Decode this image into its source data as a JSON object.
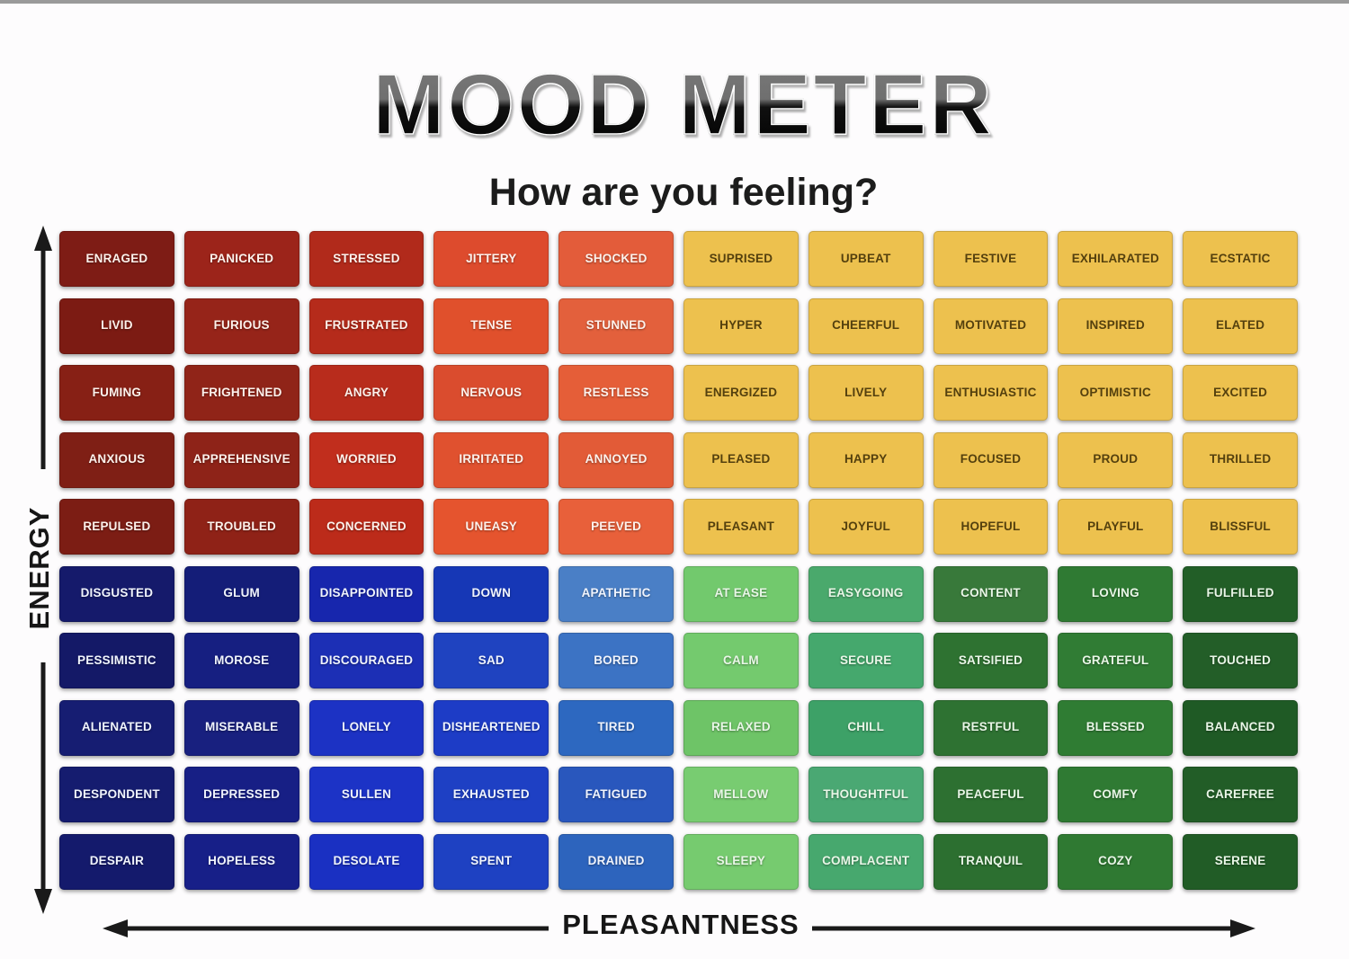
{
  "page": {
    "title": "MOOD METER",
    "subtitle": "How are you feeling?"
  },
  "axes": {
    "y_label": "ENERGY",
    "x_label": "PLEASANTNESS"
  },
  "palette": {
    "background": "#fdfcfd",
    "top_line": "#9a9a9a",
    "axis_arrow": "#1a1a1a",
    "text_colors": {
      "red": "#fdf2ec",
      "yellow": "#54400e",
      "blue": "#f0f4fd",
      "green": "#e9f6e7"
    }
  },
  "chart_data": {
    "type": "heatmap",
    "title": "MOOD METER",
    "subtitle": "How are you feeling?",
    "xlabel": "PLEASANTNESS",
    "ylabel": "ENERGY",
    "grid_size": "10x10",
    "legend_position": "none",
    "quadrant_colors": {
      "top_left": "red",
      "top_right": "yellow",
      "bottom_left": "blue",
      "bottom_right": "green"
    },
    "grid": [
      [
        {
          "label": "ENRAGED",
          "color": "#7e1c15"
        },
        {
          "label": "PANICKED",
          "color": "#9c241a"
        },
        {
          "label": "STRESSED",
          "color": "#b12a1b"
        },
        {
          "label": "JITTERY",
          "color": "#dd4b2d"
        },
        {
          "label": "SHOCKED",
          "color": "#e35c3a"
        },
        {
          "label": "SUPRISED",
          "color": "#edc14e"
        },
        {
          "label": "UPBEAT",
          "color": "#edc14e"
        },
        {
          "label": "FESTIVE",
          "color": "#edc14e"
        },
        {
          "label": "EXHILARATED",
          "color": "#edc14e"
        },
        {
          "label": "ECSTATIC",
          "color": "#edc14e"
        }
      ],
      [
        {
          "label": "LIVID",
          "color": "#7c1b13"
        },
        {
          "label": "FURIOUS",
          "color": "#962419"
        },
        {
          "label": "FRUSTRATED",
          "color": "#b52b1b"
        },
        {
          "label": "TENSE",
          "color": "#e0502c"
        },
        {
          "label": "STUNNED",
          "color": "#e3603c"
        },
        {
          "label": "HYPER",
          "color": "#edc14e"
        },
        {
          "label": "CHEERFUL",
          "color": "#edc14e"
        },
        {
          "label": "MOTIVATED",
          "color": "#edc14e"
        },
        {
          "label": "INSPIRED",
          "color": "#edc14e"
        },
        {
          "label": "ELATED",
          "color": "#edc14e"
        }
      ],
      [
        {
          "label": "FUMING",
          "color": "#872015"
        },
        {
          "label": "FRIGHTENED",
          "color": "#902418"
        },
        {
          "label": "ANGRY",
          "color": "#b82c1c"
        },
        {
          "label": "NERVOUS",
          "color": "#da4c2e"
        },
        {
          "label": "RESTLESS",
          "color": "#e55e38"
        },
        {
          "label": "ENERGIZED",
          "color": "#edc14e"
        },
        {
          "label": "LIVELY",
          "color": "#edc14e"
        },
        {
          "label": "ENTHUSIASTIC",
          "color": "#edc14e"
        },
        {
          "label": "OPTIMISTIC",
          "color": "#edc14e"
        },
        {
          "label": "EXCITED",
          "color": "#edc14e"
        }
      ],
      [
        {
          "label": "ANXIOUS",
          "color": "#7f1f15"
        },
        {
          "label": "APPREHENSIVE",
          "color": "#8e2318"
        },
        {
          "label": "WORRIED",
          "color": "#c12e1d"
        },
        {
          "label": "IRRITATED",
          "color": "#e0512f"
        },
        {
          "label": "ANNOYED",
          "color": "#e25b37"
        },
        {
          "label": "PLEASED",
          "color": "#edc14e"
        },
        {
          "label": "HAPPY",
          "color": "#edc14e"
        },
        {
          "label": "FOCUSED",
          "color": "#edc14e"
        },
        {
          "label": "PROUD",
          "color": "#edc14e"
        },
        {
          "label": "THRILLED",
          "color": "#edc14e"
        }
      ],
      [
        {
          "label": "REPULSED",
          "color": "#7c1d14"
        },
        {
          "label": "TROUBLED",
          "color": "#8f2217"
        },
        {
          "label": "CONCERNED",
          "color": "#bc2b1a"
        },
        {
          "label": "UNEASY",
          "color": "#e5542e"
        },
        {
          "label": "PEEVED",
          "color": "#e8603a"
        },
        {
          "label": "PLEASANT",
          "color": "#edc14e"
        },
        {
          "label": "JOYFUL",
          "color": "#edc14e"
        },
        {
          "label": "HOPEFUL",
          "color": "#edc14e"
        },
        {
          "label": "PLAYFUL",
          "color": "#edc14e"
        },
        {
          "label": "BLISSFUL",
          "color": "#edc14e"
        }
      ],
      [
        {
          "label": "DISGUSTED",
          "color": "#151a6b"
        },
        {
          "label": "GLUM",
          "color": "#141d78"
        },
        {
          "label": "DISAPPOINTED",
          "color": "#1726ad"
        },
        {
          "label": "DOWN",
          "color": "#1637b6"
        },
        {
          "label": "APATHETIC",
          "color": "#4a7fc6"
        },
        {
          "label": "AT EASE",
          "color": "#72c96d"
        },
        {
          "label": "EASYGOING",
          "color": "#4aa96c"
        },
        {
          "label": "CONTENT",
          "color": "#38793a"
        },
        {
          "label": "LOVING",
          "color": "#2f7a33"
        },
        {
          "label": "FULFILLED",
          "color": "#225e27"
        }
      ],
      [
        {
          "label": "PESSIMISTIC",
          "color": "#141967"
        },
        {
          "label": "MOROSE",
          "color": "#161f81"
        },
        {
          "label": "DISCOURAGED",
          "color": "#1c2fb5"
        },
        {
          "label": "SAD",
          "color": "#1f43c0"
        },
        {
          "label": "BORED",
          "color": "#3c73c4"
        },
        {
          "label": "CALM",
          "color": "#74ca6e"
        },
        {
          "label": "SECURE",
          "color": "#45a86d"
        },
        {
          "label": "SATSIFIED",
          "color": "#2e7231"
        },
        {
          "label": "GRATEFUL",
          "color": "#307c34"
        },
        {
          "label": "TOUCHED",
          "color": "#235e28"
        }
      ],
      [
        {
          "label": "ALIENATED",
          "color": "#161d72"
        },
        {
          "label": "MISERABLE",
          "color": "#18207f"
        },
        {
          "label": "LONELY",
          "color": "#1c32c4"
        },
        {
          "label": "DISHEARTENED",
          "color": "#1d3cc6"
        },
        {
          "label": "TIRED",
          "color": "#2d68c0"
        },
        {
          "label": "RELAXED",
          "color": "#6ec467"
        },
        {
          "label": "CHILL",
          "color": "#3da167"
        },
        {
          "label": "RESTFUL",
          "color": "#2e7232"
        },
        {
          "label": "BLESSED",
          "color": "#2f7c33"
        },
        {
          "label": "BALANCED",
          "color": "#1f5a25"
        }
      ],
      [
        {
          "label": "DESPONDENT",
          "color": "#151c6f"
        },
        {
          "label": "DEPRESSED",
          "color": "#171f85"
        },
        {
          "label": "SULLEN",
          "color": "#1c33c6"
        },
        {
          "label": "EXHAUSTED",
          "color": "#1e40c4"
        },
        {
          "label": "FATIGUED",
          "color": "#2957bd"
        },
        {
          "label": "MELLOW",
          "color": "#78cc71"
        },
        {
          "label": "THOUGHTFUL",
          "color": "#4aa873"
        },
        {
          "label": "PEACEFUL",
          "color": "#2d7031"
        },
        {
          "label": "COMFY",
          "color": "#2f7a33"
        },
        {
          "label": "CAREFREE",
          "color": "#225d27"
        }
      ],
      [
        {
          "label": "DESPAIR",
          "color": "#141a6c"
        },
        {
          "label": "HOPELESS",
          "color": "#171f88"
        },
        {
          "label": "DESOLATE",
          "color": "#1a30c2"
        },
        {
          "label": "SPENT",
          "color": "#1e41c2"
        },
        {
          "label": "DRAINED",
          "color": "#2d64bd"
        },
        {
          "label": "SLEEPY",
          "color": "#76cb6f"
        },
        {
          "label": "COMPLACENT",
          "color": "#47a86e"
        },
        {
          "label": "TRANQUIL",
          "color": "#2c6f30"
        },
        {
          "label": "COZY",
          "color": "#2f7932"
        },
        {
          "label": "SERENE",
          "color": "#215c26"
        }
      ]
    ]
  }
}
